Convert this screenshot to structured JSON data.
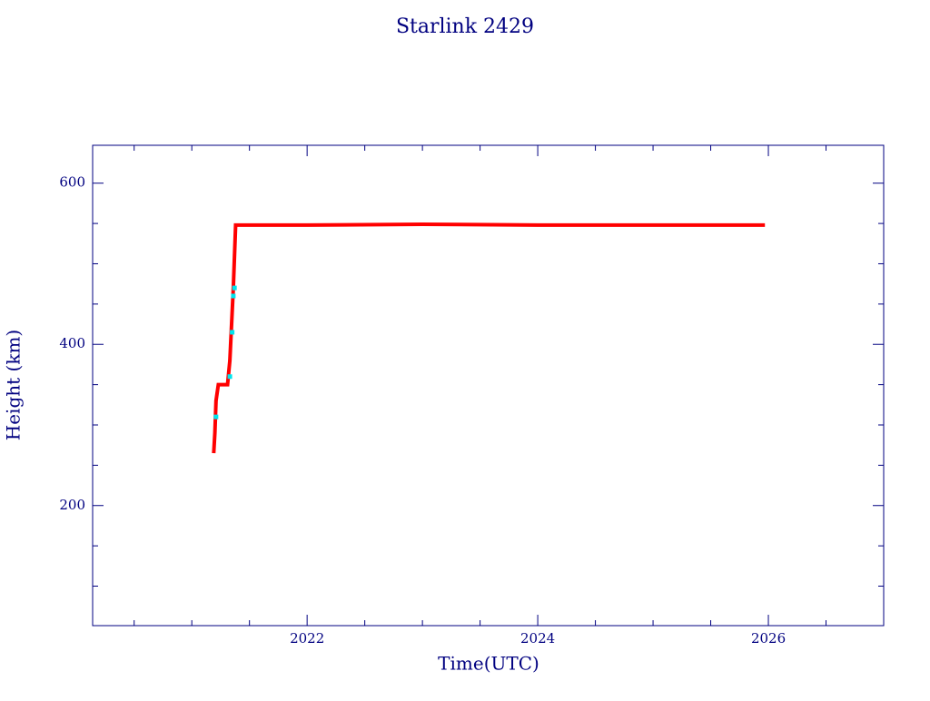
{
  "chart_data": {
    "type": "line",
    "title": "Starlink 2429",
    "x_label": "Time(UTC)",
    "y_label": "Height (km)",
    "xlim": [
      2020.14,
      2027.0
    ],
    "ylim": [
      51,
      647
    ],
    "xticks": [
      2022,
      2024,
      2026
    ],
    "xminorticks": [
      2020.5,
      2021,
      2021.5,
      2022.5,
      2023,
      2023.5,
      2024.5,
      2025,
      2025.5,
      2026.5
    ],
    "yticks": [
      200,
      400,
      600
    ],
    "yminorticks": [
      100,
      150,
      250,
      300,
      350,
      450,
      500,
      550
    ],
    "axis_color": "#000080",
    "series": [
      {
        "color": "#ff0000",
        "x": [
          2021.19,
          2021.2,
          2021.21,
          2021.23,
          2021.27,
          2021.31,
          2021.33,
          2021.36,
          2021.38,
          2021.5,
          2022,
          2023,
          2024,
          2025,
          2025.97
        ],
        "values": [
          265,
          290,
          330,
          350,
          350,
          350,
          380,
          470,
          548,
          548,
          548,
          549,
          548,
          548,
          548
        ]
      },
      {
        "color": "#00e5ee",
        "x": [
          2021.21,
          2021.33,
          2021.35,
          2021.36,
          2021.37
        ],
        "values": [
          310,
          360,
          415,
          460,
          470
        ]
      }
    ]
  }
}
